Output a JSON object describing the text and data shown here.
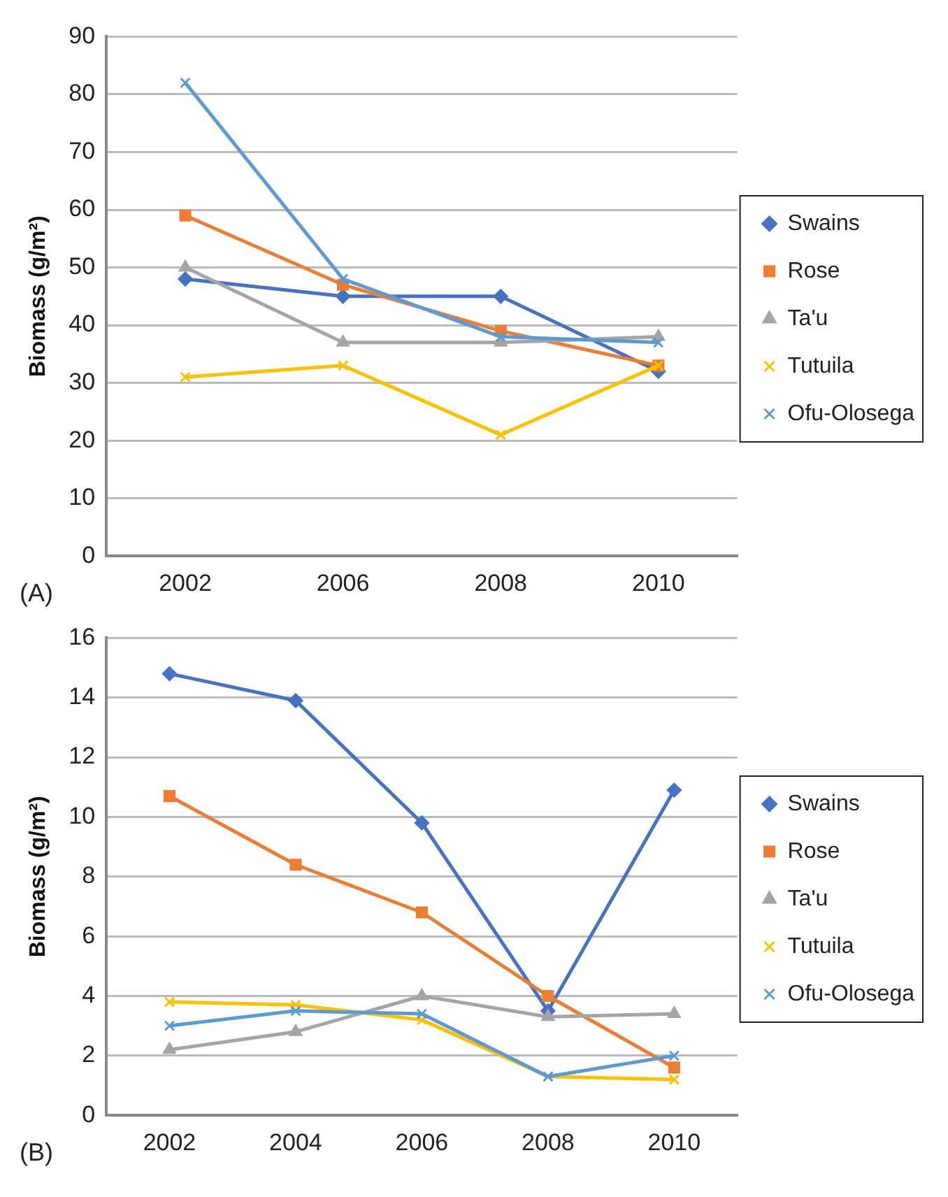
{
  "chart_data": [
    {
      "type": "line",
      "ylabel": "Biomass (g/m²)",
      "annotations": [
        "(A)"
      ],
      "categories": [
        "2002",
        "2006",
        "2008",
        "2010"
      ],
      "ylim": [
        0,
        90
      ],
      "yticks": [
        0,
        10,
        20,
        30,
        40,
        50,
        60,
        70,
        80,
        90
      ],
      "grid": "y",
      "legend": "right",
      "series": [
        {
          "name": "Swains",
          "color": "#4472c4",
          "marker": "diamond",
          "values": [
            48,
            45,
            45,
            32
          ]
        },
        {
          "name": "Rose",
          "color": "#ed7d31",
          "marker": "square",
          "values": [
            59,
            47,
            39,
            33
          ]
        },
        {
          "name": "Ta'u",
          "color": "#a5a5a5",
          "marker": "triangle",
          "values": [
            50,
            37,
            37,
            38
          ]
        },
        {
          "name": "Tutuila",
          "color": "#ffc000",
          "marker": "cross",
          "values": [
            31,
            33,
            21,
            33
          ]
        },
        {
          "name": "Ofu-Olosega",
          "color": "#5b9bd5",
          "marker": "cross",
          "values": [
            82,
            48,
            38,
            37
          ]
        }
      ]
    },
    {
      "type": "line",
      "ylabel": "Biomass (g/m²)",
      "annotations": [
        "(B)"
      ],
      "categories": [
        "2002",
        "2004",
        "2006",
        "2008",
        "2010"
      ],
      "ylim": [
        0,
        16
      ],
      "yticks": [
        0,
        2,
        4,
        6,
        8,
        10,
        12,
        14,
        16
      ],
      "grid": "y",
      "legend": "right",
      "series": [
        {
          "name": "Swains",
          "color": "#4472c4",
          "marker": "diamond",
          "values": [
            14.8,
            13.9,
            9.8,
            3.5,
            10.9
          ]
        },
        {
          "name": "Rose",
          "color": "#ed7d31",
          "marker": "square",
          "values": [
            10.7,
            8.4,
            6.8,
            4.0,
            1.6
          ]
        },
        {
          "name": "Ta'u",
          "color": "#a5a5a5",
          "marker": "triangle",
          "values": [
            2.2,
            2.8,
            4.0,
            3.3,
            3.4
          ]
        },
        {
          "name": "Tutuila",
          "color": "#ffc000",
          "marker": "cross",
          "values": [
            3.8,
            3.7,
            3.2,
            1.3,
            1.2
          ]
        },
        {
          "name": "Ofu-Olosega",
          "color": "#5b9bd5",
          "marker": "cross",
          "values": [
            3.0,
            3.5,
            3.4,
            1.3,
            2.0
          ]
        }
      ]
    }
  ]
}
